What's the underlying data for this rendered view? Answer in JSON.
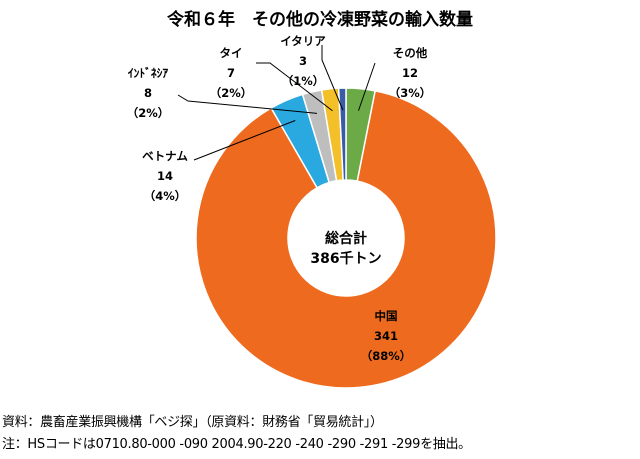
{
  "title": "令和６年　その他の冷凍野菜の輸入数量",
  "center_label": {
    "line1": "総合計",
    "line2": "386千トン"
  },
  "source_text": "資料：農畜産業振興機構「ベジ探」（原資料：財務省「貿易統計」）",
  "note_text": "注：HSコードは0710.80-000 -090 2004.90-220 -240 -290 -291 -299を抽出。",
  "chart_data": {
    "type": "pie",
    "title": "令和６年　その他の冷凍野菜の輸入数量",
    "total_label": "386千トン",
    "slices": [
      {
        "name": "中国",
        "value": 341,
        "percent": "（88%）",
        "color": "#EE6A1E"
      },
      {
        "name": "ベトナム",
        "value": 14,
        "percent": "（4%）",
        "color": "#2AA8E0"
      },
      {
        "name": "ｲﾝﾄﾞﾈｼｱ",
        "value": 8,
        "percent": "（2%）",
        "color": "#BEBEBE"
      },
      {
        "name": "タイ",
        "value": 7,
        "percent": "（2%）",
        "color": "#F4C02A"
      },
      {
        "name": "イタリア",
        "value": 3,
        "percent": "（1%）",
        "color": "#3A5BA8"
      },
      {
        "name": "その他",
        "value": 12,
        "percent": "（3%）",
        "color": "#6BAA47"
      }
    ]
  }
}
